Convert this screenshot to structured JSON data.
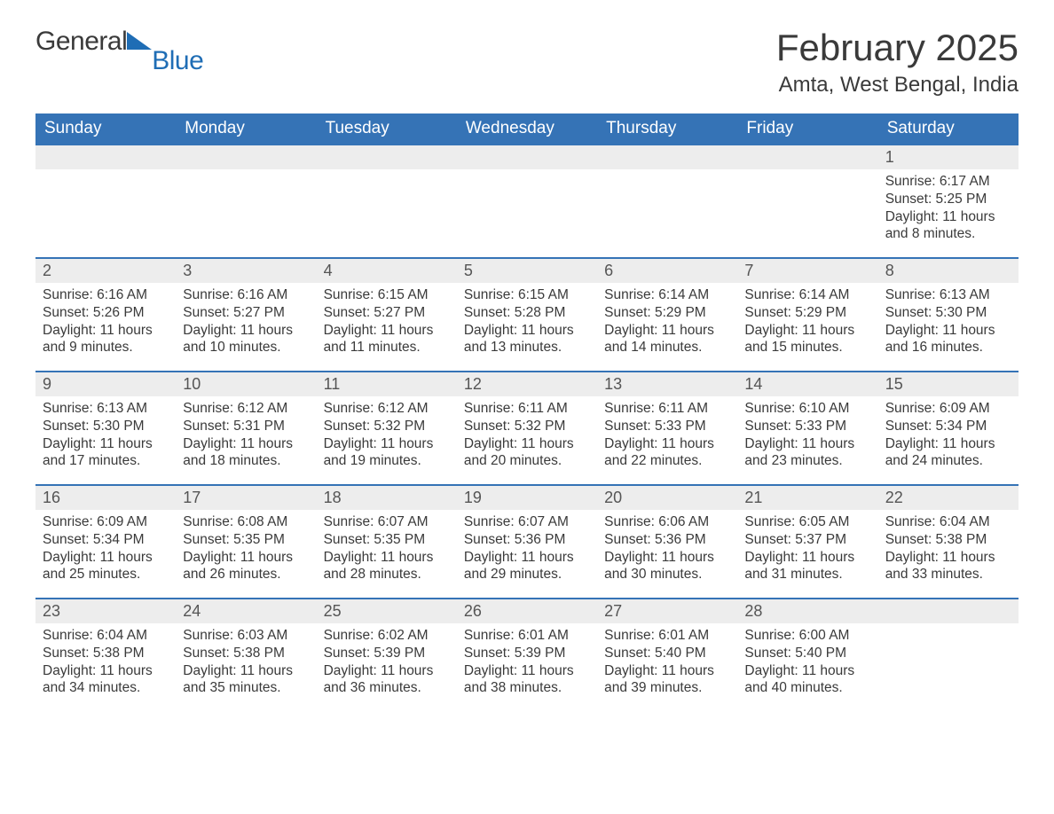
{
  "brand": {
    "part1": "General",
    "part2": "Blue",
    "accent_color": "#1f6db5"
  },
  "header": {
    "month_title": "February 2025",
    "location": "Amta, West Bengal, India"
  },
  "theme": {
    "header_bg": "#3573b6",
    "header_text": "#ffffff",
    "daynum_bg": "#ededed",
    "row_border": "#3573b6",
    "body_text": "#3a3a3a",
    "daynum_text": "#555555",
    "page_bg": "#ffffff",
    "font_family": "Arial, Helvetica, sans-serif",
    "month_title_fontsize": 42,
    "location_fontsize": 24,
    "weekday_fontsize": 19,
    "daynum_fontsize": 18,
    "body_fontsize": 15.5
  },
  "calendar": {
    "type": "table",
    "columns": [
      "Sunday",
      "Monday",
      "Tuesday",
      "Wednesday",
      "Thursday",
      "Friday",
      "Saturday"
    ],
    "weeks": [
      [
        null,
        null,
        null,
        null,
        null,
        null,
        {
          "day": "1",
          "sunrise": "Sunrise: 6:17 AM",
          "sunset": "Sunset: 5:25 PM",
          "daylight": "Daylight: 11 hours and 8 minutes."
        }
      ],
      [
        {
          "day": "2",
          "sunrise": "Sunrise: 6:16 AM",
          "sunset": "Sunset: 5:26 PM",
          "daylight": "Daylight: 11 hours and 9 minutes."
        },
        {
          "day": "3",
          "sunrise": "Sunrise: 6:16 AM",
          "sunset": "Sunset: 5:27 PM",
          "daylight": "Daylight: 11 hours and 10 minutes."
        },
        {
          "day": "4",
          "sunrise": "Sunrise: 6:15 AM",
          "sunset": "Sunset: 5:27 PM",
          "daylight": "Daylight: 11 hours and 11 minutes."
        },
        {
          "day": "5",
          "sunrise": "Sunrise: 6:15 AM",
          "sunset": "Sunset: 5:28 PM",
          "daylight": "Daylight: 11 hours and 13 minutes."
        },
        {
          "day": "6",
          "sunrise": "Sunrise: 6:14 AM",
          "sunset": "Sunset: 5:29 PM",
          "daylight": "Daylight: 11 hours and 14 minutes."
        },
        {
          "day": "7",
          "sunrise": "Sunrise: 6:14 AM",
          "sunset": "Sunset: 5:29 PM",
          "daylight": "Daylight: 11 hours and 15 minutes."
        },
        {
          "day": "8",
          "sunrise": "Sunrise: 6:13 AM",
          "sunset": "Sunset: 5:30 PM",
          "daylight": "Daylight: 11 hours and 16 minutes."
        }
      ],
      [
        {
          "day": "9",
          "sunrise": "Sunrise: 6:13 AM",
          "sunset": "Sunset: 5:30 PM",
          "daylight": "Daylight: 11 hours and 17 minutes."
        },
        {
          "day": "10",
          "sunrise": "Sunrise: 6:12 AM",
          "sunset": "Sunset: 5:31 PM",
          "daylight": "Daylight: 11 hours and 18 minutes."
        },
        {
          "day": "11",
          "sunrise": "Sunrise: 6:12 AM",
          "sunset": "Sunset: 5:32 PM",
          "daylight": "Daylight: 11 hours and 19 minutes."
        },
        {
          "day": "12",
          "sunrise": "Sunrise: 6:11 AM",
          "sunset": "Sunset: 5:32 PM",
          "daylight": "Daylight: 11 hours and 20 minutes."
        },
        {
          "day": "13",
          "sunrise": "Sunrise: 6:11 AM",
          "sunset": "Sunset: 5:33 PM",
          "daylight": "Daylight: 11 hours and 22 minutes."
        },
        {
          "day": "14",
          "sunrise": "Sunrise: 6:10 AM",
          "sunset": "Sunset: 5:33 PM",
          "daylight": "Daylight: 11 hours and 23 minutes."
        },
        {
          "day": "15",
          "sunrise": "Sunrise: 6:09 AM",
          "sunset": "Sunset: 5:34 PM",
          "daylight": "Daylight: 11 hours and 24 minutes."
        }
      ],
      [
        {
          "day": "16",
          "sunrise": "Sunrise: 6:09 AM",
          "sunset": "Sunset: 5:34 PM",
          "daylight": "Daylight: 11 hours and 25 minutes."
        },
        {
          "day": "17",
          "sunrise": "Sunrise: 6:08 AM",
          "sunset": "Sunset: 5:35 PM",
          "daylight": "Daylight: 11 hours and 26 minutes."
        },
        {
          "day": "18",
          "sunrise": "Sunrise: 6:07 AM",
          "sunset": "Sunset: 5:35 PM",
          "daylight": "Daylight: 11 hours and 28 minutes."
        },
        {
          "day": "19",
          "sunrise": "Sunrise: 6:07 AM",
          "sunset": "Sunset: 5:36 PM",
          "daylight": "Daylight: 11 hours and 29 minutes."
        },
        {
          "day": "20",
          "sunrise": "Sunrise: 6:06 AM",
          "sunset": "Sunset: 5:36 PM",
          "daylight": "Daylight: 11 hours and 30 minutes."
        },
        {
          "day": "21",
          "sunrise": "Sunrise: 6:05 AM",
          "sunset": "Sunset: 5:37 PM",
          "daylight": "Daylight: 11 hours and 31 minutes."
        },
        {
          "day": "22",
          "sunrise": "Sunrise: 6:04 AM",
          "sunset": "Sunset: 5:38 PM",
          "daylight": "Daylight: 11 hours and 33 minutes."
        }
      ],
      [
        {
          "day": "23",
          "sunrise": "Sunrise: 6:04 AM",
          "sunset": "Sunset: 5:38 PM",
          "daylight": "Daylight: 11 hours and 34 minutes."
        },
        {
          "day": "24",
          "sunrise": "Sunrise: 6:03 AM",
          "sunset": "Sunset: 5:38 PM",
          "daylight": "Daylight: 11 hours and 35 minutes."
        },
        {
          "day": "25",
          "sunrise": "Sunrise: 6:02 AM",
          "sunset": "Sunset: 5:39 PM",
          "daylight": "Daylight: 11 hours and 36 minutes."
        },
        {
          "day": "26",
          "sunrise": "Sunrise: 6:01 AM",
          "sunset": "Sunset: 5:39 PM",
          "daylight": "Daylight: 11 hours and 38 minutes."
        },
        {
          "day": "27",
          "sunrise": "Sunrise: 6:01 AM",
          "sunset": "Sunset: 5:40 PM",
          "daylight": "Daylight: 11 hours and 39 minutes."
        },
        {
          "day": "28",
          "sunrise": "Sunrise: 6:00 AM",
          "sunset": "Sunset: 5:40 PM",
          "daylight": "Daylight: 11 hours and 40 minutes."
        },
        null
      ]
    ]
  }
}
